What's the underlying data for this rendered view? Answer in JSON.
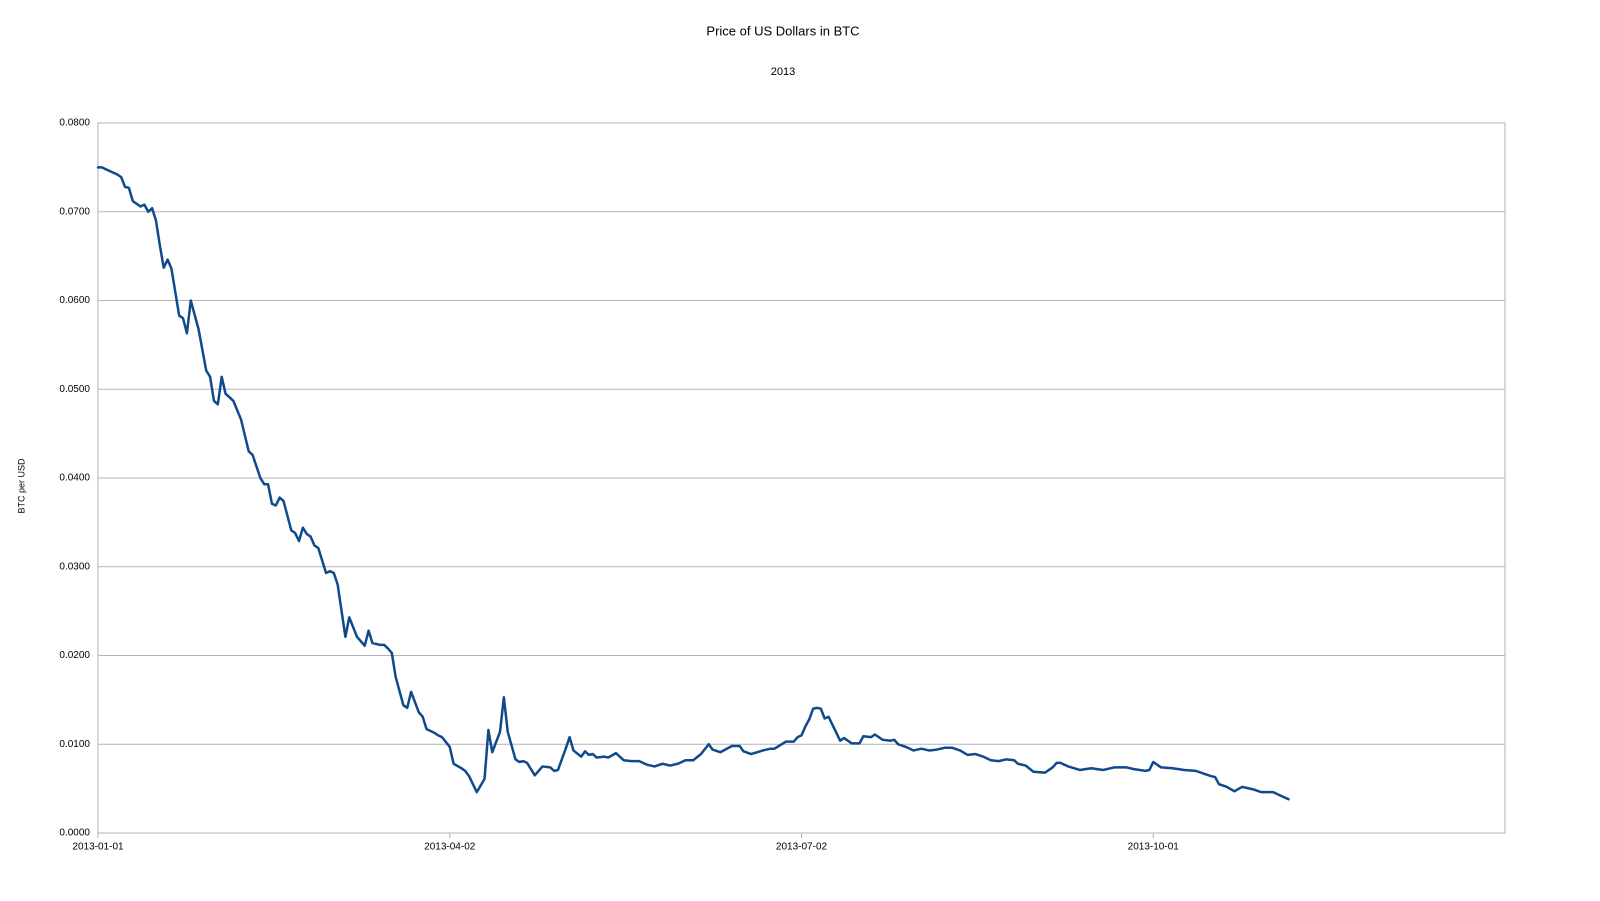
{
  "chart_data": {
    "type": "line",
    "title": "Price of US Dollars in BTC",
    "subtitle": "2013",
    "y_label": "BTC per USD",
    "xlim": [
      "2013-01-01",
      "2013-12-31"
    ],
    "xticks": [
      "2013-01-01",
      "2013-04-02",
      "2013-07-02",
      "2013-10-01"
    ],
    "ylim": [
      0,
      0.08
    ],
    "yticks": [
      {
        "value": 0,
        "label": "0.0000"
      },
      {
        "value": 0.01,
        "label": "0.0100"
      },
      {
        "value": 0.02,
        "label": "0.0200"
      },
      {
        "value": 0.03,
        "label": "0.0300"
      },
      {
        "value": 0.04,
        "label": "0.0400"
      },
      {
        "value": 0.05,
        "label": "0.0500"
      },
      {
        "value": 0.06,
        "label": "0.0600"
      },
      {
        "value": 0.07,
        "label": "0.0700"
      },
      {
        "value": 0.08,
        "label": "0.0800"
      }
    ],
    "grid": true,
    "x": [
      "2013-01-01",
      "2013-01-02",
      "2013-01-05",
      "2013-01-06",
      "2013-01-07",
      "2013-01-08",
      "2013-01-09",
      "2013-01-10",
      "2013-01-12",
      "2013-01-13",
      "2013-01-14",
      "2013-01-15",
      "2013-01-16",
      "2013-01-17",
      "2013-01-18",
      "2013-01-19",
      "2013-01-20",
      "2013-01-22",
      "2013-01-23",
      "2013-01-24",
      "2013-01-25",
      "2013-01-27",
      "2013-01-29",
      "2013-01-30",
      "2013-01-31",
      "2013-02-01",
      "2013-02-02",
      "2013-02-03",
      "2013-02-05",
      "2013-02-07",
      "2013-02-09",
      "2013-02-10",
      "2013-02-12",
      "2013-02-13",
      "2013-02-14",
      "2013-02-15",
      "2013-02-16",
      "2013-02-17",
      "2013-02-18",
      "2013-02-20",
      "2013-02-21",
      "2013-02-22",
      "2013-02-23",
      "2013-02-24",
      "2013-02-25",
      "2013-02-26",
      "2013-02-27",
      "2013-03-01",
      "2013-03-02",
      "2013-03-03",
      "2013-03-04",
      "2013-03-06",
      "2013-03-07",
      "2013-03-09",
      "2013-03-11",
      "2013-03-12",
      "2013-03-13",
      "2013-03-15",
      "2013-03-16",
      "2013-03-17",
      "2013-03-18",
      "2013-03-19",
      "2013-03-21",
      "2013-03-22",
      "2013-03-23",
      "2013-03-25",
      "2013-03-26",
      "2013-03-27",
      "2013-03-29",
      "2013-03-30",
      "2013-03-31",
      "2013-04-02",
      "2013-04-03",
      "2013-04-05",
      "2013-04-06",
      "2013-04-07",
      "2013-04-09",
      "2013-04-11",
      "2013-04-12",
      "2013-04-13",
      "2013-04-15",
      "2013-04-16",
      "2013-04-17",
      "2013-04-19",
      "2013-04-20",
      "2013-04-21",
      "2013-04-22",
      "2013-04-24",
      "2013-04-26",
      "2013-04-28",
      "2013-04-29",
      "2013-04-30",
      "2013-05-02",
      "2013-05-03",
      "2013-05-04",
      "2013-05-06",
      "2013-05-07",
      "2013-05-08",
      "2013-05-09",
      "2013-05-10",
      "2013-05-12",
      "2013-05-13",
      "2013-05-15",
      "2013-05-17",
      "2013-05-19",
      "2013-05-21",
      "2013-05-23",
      "2013-05-25",
      "2013-05-27",
      "2013-05-29",
      "2013-05-31",
      "2013-06-02",
      "2013-06-04",
      "2013-06-06",
      "2013-06-08",
      "2013-06-09",
      "2013-06-11",
      "2013-06-14",
      "2013-06-16",
      "2013-06-17",
      "2013-06-19",
      "2013-06-22",
      "2013-06-24",
      "2013-06-25",
      "2013-06-28",
      "2013-06-30",
      "2013-07-01",
      "2013-07-02",
      "2013-07-03",
      "2013-07-04",
      "2013-07-05",
      "2013-07-06",
      "2013-07-07",
      "2013-07-08",
      "2013-07-09",
      "2013-07-10",
      "2013-07-12",
      "2013-07-13",
      "2013-07-15",
      "2013-07-17",
      "2013-07-18",
      "2013-07-20",
      "2013-07-21",
      "2013-07-23",
      "2013-07-25",
      "2013-07-26",
      "2013-07-27",
      "2013-07-29",
      "2013-07-31",
      "2013-08-02",
      "2013-08-04",
      "2013-08-06",
      "2013-08-08",
      "2013-08-10",
      "2013-08-12",
      "2013-08-14",
      "2013-08-16",
      "2013-08-18",
      "2013-08-20",
      "2013-08-22",
      "2013-08-24",
      "2013-08-26",
      "2013-08-27",
      "2013-08-29",
      "2013-08-31",
      "2013-09-03",
      "2013-09-05",
      "2013-09-06",
      "2013-09-07",
      "2013-09-09",
      "2013-09-12",
      "2013-09-15",
      "2013-09-18",
      "2013-09-21",
      "2013-09-24",
      "2013-09-26",
      "2013-09-29",
      "2013-09-30",
      "2013-10-01",
      "2013-10-03",
      "2013-10-06",
      "2013-10-09",
      "2013-10-12",
      "2013-10-14",
      "2013-10-16",
      "2013-10-17",
      "2013-10-18",
      "2013-10-20",
      "2013-10-22",
      "2013-10-24",
      "2013-10-27",
      "2013-10-29",
      "2013-11-01",
      "2013-11-03",
      "2013-11-05"
    ],
    "series": [
      {
        "name": "BTC per USD",
        "color": "#0e4a8c",
        "values": [
          0.075,
          0.075,
          0.0744,
          0.0742,
          0.0739,
          0.0728,
          0.0727,
          0.0712,
          0.0706,
          0.0708,
          0.07,
          0.0704,
          0.069,
          0.0662,
          0.0637,
          0.0646,
          0.0636,
          0.0583,
          0.058,
          0.0563,
          0.06,
          0.0568,
          0.0521,
          0.0514,
          0.0487,
          0.0483,
          0.0514,
          0.0495,
          0.0487,
          0.0466,
          0.043,
          0.0426,
          0.04,
          0.0393,
          0.0393,
          0.0371,
          0.0369,
          0.0378,
          0.0374,
          0.0341,
          0.0338,
          0.0329,
          0.0344,
          0.0337,
          0.0334,
          0.0324,
          0.0321,
          0.0293,
          0.0295,
          0.0293,
          0.028,
          0.0221,
          0.0243,
          0.0221,
          0.0211,
          0.0228,
          0.0214,
          0.0212,
          0.0212,
          0.0208,
          0.0203,
          0.0176,
          0.0144,
          0.0141,
          0.0159,
          0.0136,
          0.0131,
          0.0117,
          0.0113,
          0.011,
          0.0108,
          0.0097,
          0.0078,
          0.0073,
          0.007,
          0.0064,
          0.0046,
          0.0061,
          0.0116,
          0.0091,
          0.0114,
          0.0153,
          0.0114,
          0.0083,
          0.008,
          0.0081,
          0.0079,
          0.0065,
          0.0075,
          0.0074,
          0.007,
          0.0071,
          0.0095,
          0.0108,
          0.0093,
          0.0086,
          0.0092,
          0.0088,
          0.0089,
          0.0085,
          0.0086,
          0.0085,
          0.009,
          0.0082,
          0.0081,
          0.0081,
          0.0077,
          0.0075,
          0.0078,
          0.0076,
          0.0078,
          0.0082,
          0.0082,
          0.0089,
          0.01,
          0.0094,
          0.0091,
          0.0098,
          0.0098,
          0.0092,
          0.0089,
          0.0093,
          0.0095,
          0.0095,
          0.0103,
          0.0103,
          0.0108,
          0.011,
          0.012,
          0.0128,
          0.014,
          0.0141,
          0.014,
          0.0129,
          0.0131,
          0.0122,
          0.0104,
          0.0107,
          0.0101,
          0.0101,
          0.0109,
          0.0108,
          0.0111,
          0.0105,
          0.0104,
          0.0105,
          0.01,
          0.0097,
          0.0093,
          0.0095,
          0.0093,
          0.0094,
          0.0096,
          0.0096,
          0.0093,
          0.0088,
          0.0089,
          0.0086,
          0.0082,
          0.0081,
          0.0083,
          0.0082,
          0.0078,
          0.0076,
          0.0069,
          0.0068,
          0.0074,
          0.0079,
          0.0079,
          0.0075,
          0.0071,
          0.0073,
          0.0071,
          0.0074,
          0.0074,
          0.0072,
          0.007,
          0.0071,
          0.008,
          0.0074,
          0.0073,
          0.0071,
          0.007,
          0.0067,
          0.0064,
          0.0063,
          0.0055,
          0.0052,
          0.0047,
          0.0052,
          0.0049,
          0.0046,
          0.0046,
          0.0042,
          0.0038
        ]
      }
    ]
  }
}
